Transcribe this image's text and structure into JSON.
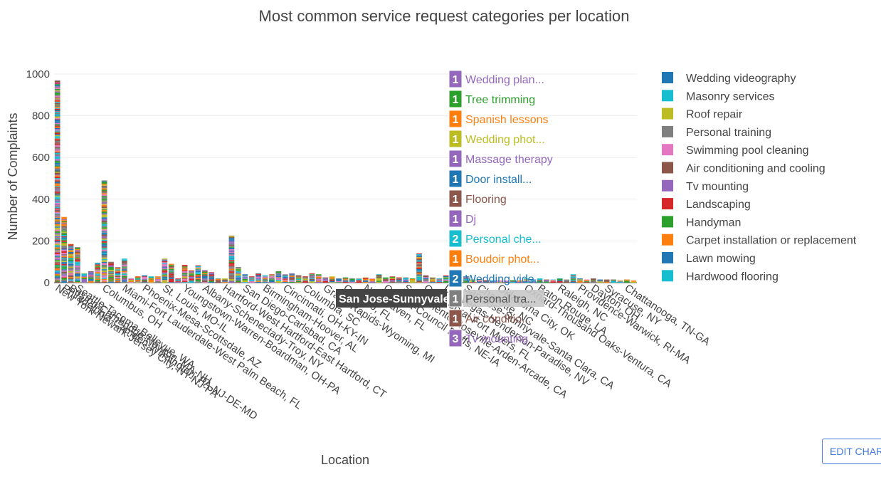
{
  "chart_data": {
    "type": "bar",
    "barmode": "stack",
    "title": "Most common service request categories per location",
    "xlabel": "Location",
    "ylabel": "Number of Complaints",
    "ylim": [
      0,
      1000
    ],
    "yticks": [
      0,
      200,
      400,
      600,
      800,
      1000
    ],
    "grid": true,
    "legend_position": "right",
    "legend": [
      {
        "name": "Wedding videography",
        "color": "#1f77b4"
      },
      {
        "name": "Masonry services",
        "color": "#17becf"
      },
      {
        "name": "Roof repair",
        "color": "#bcbd22"
      },
      {
        "name": "Personal training",
        "color": "#7f7f7f"
      },
      {
        "name": "Swimming pool cleaning",
        "color": "#e377c2"
      },
      {
        "name": "Air conditioning and cooling",
        "color": "#8c564b"
      },
      {
        "name": "Tv mounting",
        "color": "#9467bd"
      },
      {
        "name": "Landscaping",
        "color": "#d62728"
      },
      {
        "name": "Handyman",
        "color": "#2ca02c"
      },
      {
        "name": "Carpet installation or replacement",
        "color": "#ff7f0e"
      },
      {
        "name": "Lawn mowing",
        "color": "#1f77b4"
      },
      {
        "name": "Hardwood flooring",
        "color": "#17becf"
      }
    ],
    "palette": [
      "#1f77b4",
      "#ff7f0e",
      "#2ca02c",
      "#d62728",
      "#9467bd",
      "#8c564b",
      "#e377c2",
      "#7f7f7f",
      "#bcbd22",
      "#17becf"
    ],
    "x_labels": [
      "New York-Newark-Jersey City, NY-NJ-PA",
      "Philadelphia-Camden-Wilmington, PA-NJ-DE-MD",
      "Boston-Cambridge-Newton, MA-NH",
      "Seattle-Tacoma-Bellevue, WA",
      "Columbus, OH",
      "Miami-Fort Lauderdale-West Palm Beach, FL",
      "Phoenix-Mesa-Scottsdale, AZ",
      "St. Louis, MO-IL",
      "Youngstown-Warren-Boardman, OH-PA",
      "Albany-Schenectady-Troy, NY",
      "Hartford-West Hartford-East Hartford, CT",
      "San Diego-Carlsbad, CA",
      "Birmingham-Hoover, AL",
      "Cincinnati, OH-KY-IN",
      "Columbia, SC",
      "Grand Rapids-Wyoming, MI",
      "Orlando, FL",
      "New Haven, FL",
      "Omaha-Council Bluffs, NE-IA",
      "Sacramento-Roseville-Arden-Arcade, CA",
      "Cape Coral-Fort Myers, FL",
      "Las Vegas-Henderson-Paradise, NV",
      "San Jose-Sunnyvale-Santa Clara, CA",
      "Charlotte, NC",
      "Oklahoma City, OK",
      "Oxnard-Thousand Oaks-Ventura, CA",
      "Baton Rouge, LA",
      "Raleigh, NC",
      "Providence-Warwick, RI-MA",
      "Dayton, OH",
      "Syracuse, NY",
      "Chattanooga, TN-GA"
    ],
    "bars": [
      {
        "label": "New York-Newark-Jersey City, NY-NJ-PA",
        "value": 970
      },
      {
        "label": "Philadelphia-Camden-Wilmington, PA-NJ-DE-MD",
        "value": 315
      },
      {
        "label": "Boston-Cambridge-Newton, MA-NH",
        "value": 185
      },
      {
        "label": "Seattle-Tacoma-Bellevue, WA",
        "value": 170
      },
      {
        "label": "",
        "value": 45
      },
      {
        "label": "",
        "value": 55
      },
      {
        "label": "",
        "value": 95
      },
      {
        "label": "Columbus, OH",
        "value": 490
      },
      {
        "label": "",
        "value": 100
      },
      {
        "label": "",
        "value": 75
      },
      {
        "label": "Miami-Fort Lauderdale-West Palm Beach, FL",
        "value": 115
      },
      {
        "label": "",
        "value": 20
      },
      {
        "label": "",
        "value": 30
      },
      {
        "label": "Phoenix-Mesa-Scottsdale, AZ",
        "value": 35
      },
      {
        "label": "",
        "value": 30
      },
      {
        "label": "",
        "value": 30
      },
      {
        "label": "St. Louis, MO-IL",
        "value": 115
      },
      {
        "label": "",
        "value": 90
      },
      {
        "label": "",
        "value": 20
      },
      {
        "label": "Youngstown-Warren-Boardman, OH-PA",
        "value": 85
      },
      {
        "label": "",
        "value": 60
      },
      {
        "label": "",
        "value": 85
      },
      {
        "label": "Albany-Schenectady-Troy, NY",
        "value": 60
      },
      {
        "label": "",
        "value": 50
      },
      {
        "label": "",
        "value": 20
      },
      {
        "label": "Hartford-West Hartford-East Hartford, CT",
        "value": 20
      },
      {
        "label": "",
        "value": 225
      },
      {
        "label": "",
        "value": 75
      },
      {
        "label": "San Diego-Carlsbad, CA",
        "value": 40
      },
      {
        "label": "",
        "value": 30
      },
      {
        "label": "",
        "value": 45
      },
      {
        "label": "Birmingham-Hoover, AL",
        "value": 35
      },
      {
        "label": "",
        "value": 40
      },
      {
        "label": "",
        "value": 55
      },
      {
        "label": "Cincinnati, OH-KY-IN",
        "value": 40
      },
      {
        "label": "",
        "value": 45
      },
      {
        "label": "",
        "value": 35
      },
      {
        "label": "Columbia, SC",
        "value": 30
      },
      {
        "label": "",
        "value": 45
      },
      {
        "label": "",
        "value": 40
      },
      {
        "label": "Grand Rapids-Wyoming, MI",
        "value": 25
      },
      {
        "label": "",
        "value": 30
      },
      {
        "label": "",
        "value": 20
      },
      {
        "label": "Orlando, FL",
        "value": 25
      },
      {
        "label": "",
        "value": 20
      },
      {
        "label": "",
        "value": 20
      },
      {
        "label": "New Haven, FL",
        "value": 25
      },
      {
        "label": "",
        "value": 20
      },
      {
        "label": "",
        "value": 40
      },
      {
        "label": "Omaha-Council Bluffs, NE-IA",
        "value": 25
      },
      {
        "label": "",
        "value": 30
      },
      {
        "label": "",
        "value": 25
      },
      {
        "label": "Sacramento-Roseville-Arden-Arcade, CA",
        "value": 25
      },
      {
        "label": "",
        "value": 20
      },
      {
        "label": "",
        "value": 140
      },
      {
        "label": "Cape Coral-Fort Myers, FL",
        "value": 35
      },
      {
        "label": "",
        "value": 25
      },
      {
        "label": "",
        "value": 20
      },
      {
        "label": "Las Vegas-Henderson-Paradise, NV",
        "value": 35
      },
      {
        "label": "",
        "value": 20
      },
      {
        "label": "",
        "value": 25
      },
      {
        "label": "San Jose-Sunnyvale-Santa Clara, CA",
        "value": 30
      },
      {
        "label": "",
        "value": 15
      },
      {
        "label": "Charlotte, NC",
        "value": 10
      },
      {
        "label": "",
        "value": 12
      },
      {
        "label": "",
        "value": 10
      },
      {
        "label": "Oklahoma City, OK",
        "value": 10
      },
      {
        "label": "",
        "value": 10
      },
      {
        "label": "",
        "value": 12
      },
      {
        "label": "",
        "value": 10
      },
      {
        "label": "Oxnard-Thousand Oaks-Ventura, CA",
        "value": 20
      },
      {
        "label": "",
        "value": 15
      },
      {
        "label": "Baton Rouge, LA",
        "value": 20
      },
      {
        "label": "",
        "value": 15
      },
      {
        "label": "",
        "value": 15
      },
      {
        "label": "Raleigh, NC",
        "value": 20
      },
      {
        "label": "",
        "value": 15
      },
      {
        "label": "",
        "value": 40
      },
      {
        "label": "Providence-Warwick, RI-MA",
        "value": 20
      },
      {
        "label": "",
        "value": 15
      },
      {
        "label": "Dayton, OH",
        "value": 20
      },
      {
        "label": "",
        "value": 15
      },
      {
        "label": "Syracuse, NY",
        "value": 15
      },
      {
        "label": "",
        "value": 15
      },
      {
        "label": "",
        "value": 10
      },
      {
        "label": "Chattanooga, TN-GA",
        "value": 15
      },
      {
        "label": "",
        "value": 10
      }
    ],
    "hover": {
      "location": "San Jose-Sunnyvale-Santa Clara, CA",
      "items": [
        {
          "value": "1",
          "text": "Wedding plan...",
          "color": "#9467bd"
        },
        {
          "value": "1",
          "text": "Tree trimming",
          "color": "#2ca02c"
        },
        {
          "value": "1",
          "text": "Spanish lessons",
          "color": "#ff7f0e"
        },
        {
          "value": "1",
          "text": "Wedding phot...",
          "color": "#bcbd22"
        },
        {
          "value": "1",
          "text": "Massage therapy",
          "color": "#9467bd"
        },
        {
          "value": "1",
          "text": "Door install...",
          "color": "#1f77b4"
        },
        {
          "value": "1",
          "text": "Flooring",
          "color": "#8c564b"
        },
        {
          "value": "1",
          "text": "Dj",
          "color": "#9467bd"
        },
        {
          "value": "2",
          "text": "Personal che...",
          "color": "#17becf"
        },
        {
          "value": "1",
          "text": "Boudoir phot...",
          "color": "#ff7f0e"
        },
        {
          "value": "2",
          "text": "Wedding vide...",
          "color": "#1f77b4"
        },
        {
          "value": "1",
          "text": "Personal tra...",
          "color": "#7f7f7f"
        },
        {
          "value": "1",
          "text": "Air conditio...",
          "color": "#8c564b"
        },
        {
          "value": "3",
          "text": "Tv mounting",
          "color": "#9467bd"
        }
      ]
    }
  },
  "toolbar": {
    "edit_label": "EDIT CHART"
  }
}
